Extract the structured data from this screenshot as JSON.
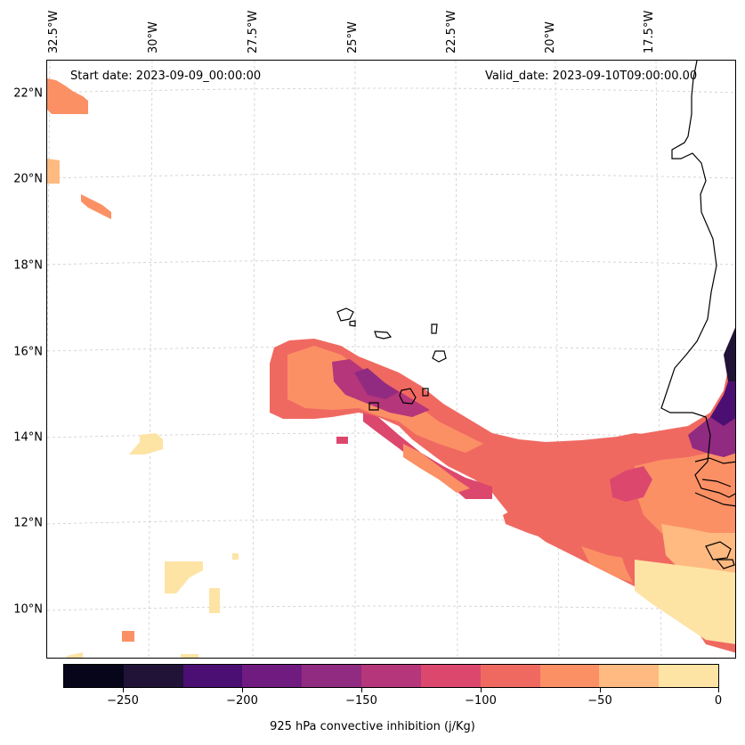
{
  "map": {
    "start_label": "Start date: 2023-09-09_00:00:00",
    "valid_label": "Valid_date: 2023-09-10T09:00:00.00",
    "lat_labels": [
      "22°N",
      "20°N",
      "18°N",
      "16°N",
      "14°N",
      "12°N",
      "10°N"
    ],
    "lon_labels": [
      "32.5°W",
      "30°W",
      "27.5°W",
      "25°W",
      "22.5°W",
      "20°W",
      "17.5°W"
    ]
  },
  "colorbar": {
    "title": "925 hPa convective inhibition (j/Kg)",
    "tick_labels": [
      "−250",
      "−200",
      "−150",
      "−100",
      "−50",
      "0"
    ],
    "levels": [
      -275,
      -250,
      -225,
      -200,
      -175,
      -150,
      -125,
      -100,
      -75,
      -50,
      -25,
      0
    ],
    "colors": [
      "#06051a",
      "#211337",
      "#4b0f73",
      "#701b80",
      "#912b81",
      "#b5367a",
      "#dc486d",
      "#f06961",
      "#fb9065",
      "#feba80",
      "#fde4a5"
    ]
  }
}
